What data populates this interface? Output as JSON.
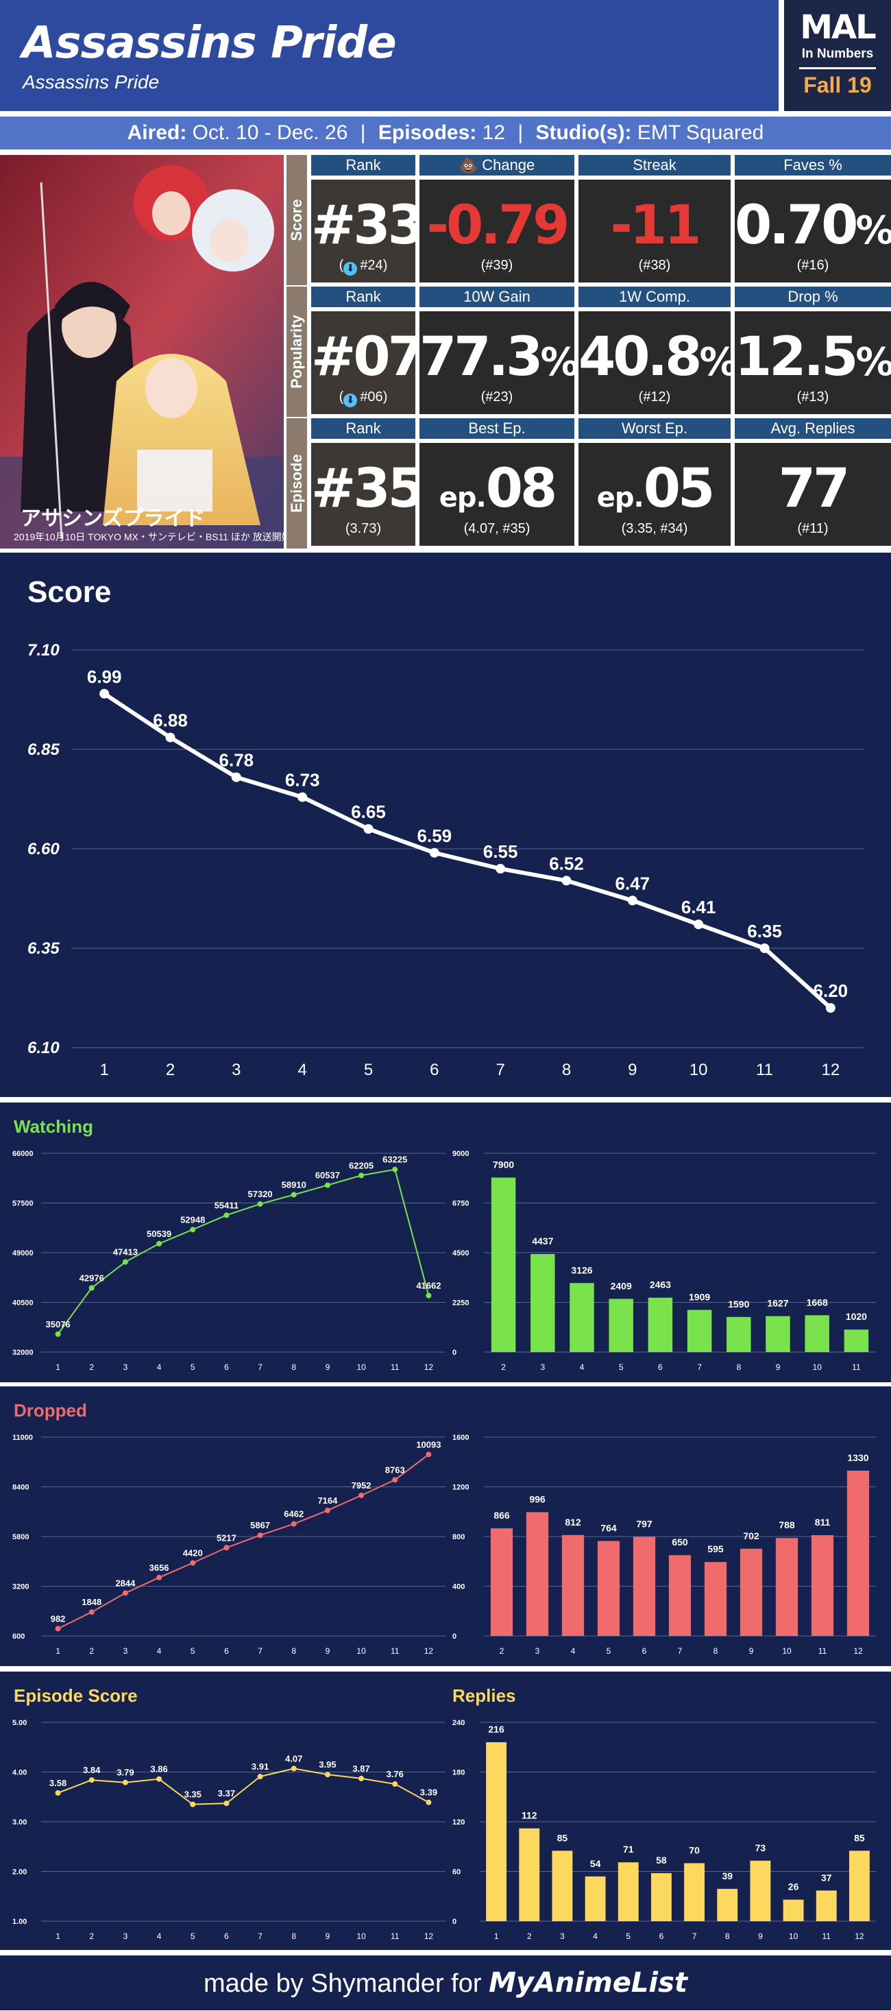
{
  "header": {
    "title": "Assassins Pride",
    "subtitle": "Assassins Pride",
    "logo_top": "MAL",
    "logo_sub": "In Numbers",
    "logo_season": "Fall 19"
  },
  "info": {
    "aired_label": "Aired:",
    "aired_value": "Oct. 10 - Dec. 26",
    "episodes_label": "Episodes:",
    "episodes_value": "12",
    "studio_label": "Studio(s):",
    "studio_value": "EMT Squared",
    "separator": "|"
  },
  "stats": {
    "score": {
      "label": "Score",
      "headers": [
        "Rank",
        "💩 Change",
        "Streak",
        "Faves %"
      ],
      "rank": "#33",
      "rank_sub": "#24",
      "change": "-0.79",
      "change_sub": "(#39)",
      "streak": "-11",
      "streak_sub": "(#38)",
      "faves": "0.70",
      "faves_unit": "%",
      "faves_sub": "(#16)"
    },
    "popularity": {
      "label": "Popularity",
      "headers": [
        "Rank",
        "10W Gain",
        "1W Comp.",
        "Drop %"
      ],
      "rank": "#07",
      "rank_sub": "#06",
      "gain": "77.3",
      "gain_unit": "%",
      "gain_sub": "(#23)",
      "comp": "40.8",
      "comp_unit": "%",
      "comp_sub": "(#12)",
      "drop": "12.5",
      "drop_unit": "%",
      "drop_sub": "(#13)"
    },
    "episode": {
      "label": "Episode",
      "headers": [
        "Rank",
        "Best Ep.",
        "Worst Ep.",
        "Avg. Replies"
      ],
      "rank": "#35",
      "rank_sub": "(3.73)",
      "best_prefix": "ep.",
      "best": "08",
      "best_sub": "(4.07, #35)",
      "worst_prefix": "ep.",
      "worst": "05",
      "worst_sub": "(3.35, #34)",
      "replies": "77",
      "replies_sub": "(#11)"
    },
    "badge_icon": "down-arrow-icon"
  },
  "chart_data": [
    {
      "id": "score",
      "type": "line",
      "title": "Score",
      "x": [
        1,
        2,
        3,
        4,
        5,
        6,
        7,
        8,
        9,
        10,
        11,
        12
      ],
      "values": [
        6.99,
        6.88,
        6.78,
        6.73,
        6.65,
        6.59,
        6.55,
        6.52,
        6.47,
        6.41,
        6.35,
        6.2
      ],
      "labels": [
        "6.99",
        "6.88",
        "6.78",
        "6.73",
        "6.65",
        "6.59",
        "6.55",
        "6.52",
        "6.47",
        "6.41",
        "6.35",
        "6.20"
      ],
      "yticks": [
        "7.10",
        "6.85",
        "6.60",
        "6.35",
        "6.10"
      ],
      "ylim": [
        6.1,
        7.1
      ],
      "color": "#ffffff"
    },
    {
      "id": "watching-line",
      "type": "line",
      "title": "Watching",
      "x": [
        1,
        2,
        3,
        4,
        5,
        6,
        7,
        8,
        9,
        10,
        11,
        12
      ],
      "values": [
        35076,
        42976,
        47413,
        50539,
        52948,
        55411,
        57320,
        58910,
        60537,
        62205,
        63225,
        41662
      ],
      "yticks": [
        "66000",
        "57500",
        "49000",
        "40500",
        "32000"
      ],
      "ylim": [
        32000,
        66000
      ],
      "color": "#7ae34c"
    },
    {
      "id": "watching-bar",
      "type": "bar",
      "categories": [
        "2",
        "3",
        "4",
        "5",
        "6",
        "7",
        "8",
        "9",
        "10",
        "11"
      ],
      "values": [
        7900,
        4437,
        3126,
        2409,
        2463,
        1909,
        1590,
        1627,
        1668,
        1020
      ],
      "yticks": [
        "9000",
        "6750",
        "4500",
        "2250",
        "0"
      ],
      "ylim": [
        0,
        9000
      ],
      "color": "#7ae34c"
    },
    {
      "id": "dropped-line",
      "type": "line",
      "title": "Dropped",
      "x": [
        1,
        2,
        3,
        4,
        5,
        6,
        7,
        8,
        9,
        10,
        11,
        12
      ],
      "values": [
        982,
        1848,
        2844,
        3656,
        4420,
        5217,
        5867,
        6462,
        7164,
        7952,
        8763,
        10093
      ],
      "yticks": [
        "11000",
        "8400",
        "5800",
        "3200",
        "600"
      ],
      "ylim": [
        600,
        11000
      ],
      "color": "#f06b6b"
    },
    {
      "id": "dropped-bar",
      "type": "bar",
      "categories": [
        "2",
        "3",
        "4",
        "5",
        "6",
        "7",
        "8",
        "9",
        "10",
        "11",
        "12"
      ],
      "values": [
        866,
        996,
        812,
        764,
        797,
        650,
        595,
        702,
        788,
        811,
        1330
      ],
      "yticks": [
        "1600",
        "1200",
        "800",
        "400",
        "0"
      ],
      "ylim": [
        0,
        1600
      ],
      "color": "#f06b6b"
    },
    {
      "id": "episode-score-line",
      "type": "line",
      "title": "Episode Score",
      "x": [
        1,
        2,
        3,
        4,
        5,
        6,
        7,
        8,
        9,
        10,
        11,
        12
      ],
      "values": [
        3.58,
        3.84,
        3.79,
        3.86,
        3.35,
        3.37,
        3.91,
        4.07,
        3.95,
        3.87,
        3.76,
        3.39
      ],
      "labels": [
        "3.58",
        "3.84",
        "3.79",
        "3.86",
        "3.35",
        "3.37",
        "3.91",
        "4.07",
        "3.95",
        "3.87",
        "3.76",
        "3.39"
      ],
      "yticks": [
        "5.00",
        "4.00",
        "3.00",
        "2.00",
        "1.00"
      ],
      "ylim": [
        1,
        5
      ],
      "color": "#fcd85e"
    },
    {
      "id": "replies-bar",
      "type": "bar",
      "title": "Replies",
      "categories": [
        "1",
        "2",
        "3",
        "4",
        "5",
        "6",
        "7",
        "8",
        "9",
        "10",
        "11",
        "12"
      ],
      "values": [
        216,
        112,
        85,
        54,
        71,
        58,
        70,
        39,
        73,
        26,
        37,
        85
      ],
      "yticks": [
        "240",
        "180",
        "120",
        "60",
        "0"
      ],
      "ylim": [
        0,
        240
      ],
      "color": "#fcd85e"
    }
  ],
  "footer": {
    "text": "made by Shymander for",
    "brand": "MyAnimeList"
  }
}
